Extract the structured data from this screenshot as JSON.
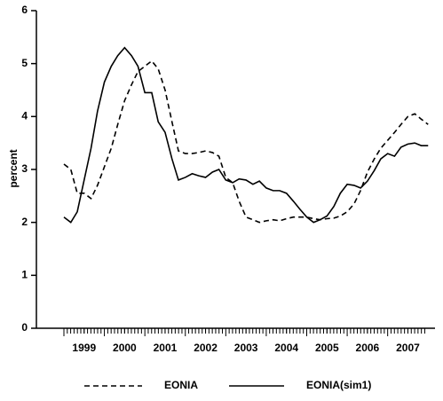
{
  "chart_data": {
    "type": "line",
    "y_label": "percent",
    "x": [
      1999.0,
      1999.17,
      1999.33,
      1999.5,
      1999.67,
      1999.83,
      2000.0,
      2000.17,
      2000.33,
      2000.5,
      2000.67,
      2000.83,
      2001.0,
      2001.17,
      2001.33,
      2001.5,
      2001.67,
      2001.83,
      2002.0,
      2002.17,
      2002.33,
      2002.5,
      2002.67,
      2002.83,
      2003.0,
      2003.17,
      2003.33,
      2003.5,
      2003.67,
      2003.83,
      2004.0,
      2004.17,
      2004.33,
      2004.5,
      2004.67,
      2004.83,
      2005.0,
      2005.17,
      2005.33,
      2005.5,
      2005.67,
      2005.83,
      2006.0,
      2006.17,
      2006.33,
      2006.5,
      2006.67,
      2006.83,
      2007.0,
      2007.17,
      2007.33,
      2007.5,
      2007.67,
      2007.83,
      2008.0
    ],
    "series": [
      {
        "name": "EONIA",
        "color": "#000000",
        "dash": "dashed",
        "values": [
          3.1,
          3.0,
          2.55,
          2.55,
          2.45,
          2.7,
          3.05,
          3.4,
          3.85,
          4.3,
          4.6,
          4.85,
          4.95,
          5.05,
          4.9,
          4.5,
          3.9,
          3.35,
          3.3,
          3.3,
          3.32,
          3.35,
          3.32,
          3.25,
          2.85,
          2.75,
          2.4,
          2.1,
          2.05,
          2.0,
          2.03,
          2.05,
          2.03,
          2.07,
          2.1,
          2.1,
          2.1,
          2.07,
          2.05,
          2.07,
          2.08,
          2.12,
          2.2,
          2.35,
          2.6,
          2.95,
          3.2,
          3.4,
          3.55,
          3.7,
          3.85,
          4.0,
          4.05,
          3.95,
          3.85
        ]
      },
      {
        "name": "EONIA(sim1)",
        "color": "#000000",
        "dash": "solid",
        "values": [
          2.1,
          2.0,
          2.2,
          2.8,
          3.4,
          4.1,
          4.65,
          4.95,
          5.15,
          5.3,
          5.15,
          4.95,
          4.45,
          4.45,
          3.9,
          3.7,
          3.2,
          2.8,
          2.85,
          2.92,
          2.88,
          2.85,
          2.95,
          3.0,
          2.8,
          2.75,
          2.82,
          2.8,
          2.72,
          2.78,
          2.65,
          2.6,
          2.6,
          2.55,
          2.4,
          2.25,
          2.1,
          2.0,
          2.05,
          2.12,
          2.3,
          2.55,
          2.72,
          2.7,
          2.65,
          2.78,
          2.98,
          3.2,
          3.3,
          3.25,
          3.42,
          3.48,
          3.5,
          3.45,
          3.45
        ]
      }
    ],
    "xlim": [
      1998.32,
      2008.17
    ],
    "xticks": [
      {
        "value": 1999.5,
        "label": "1999"
      },
      {
        "value": 2000.5,
        "label": "2000"
      },
      {
        "value": 2001.5,
        "label": "2001"
      },
      {
        "value": 2002.5,
        "label": "2002"
      },
      {
        "value": 2003.5,
        "label": "2003"
      },
      {
        "value": 2004.5,
        "label": "2004"
      },
      {
        "value": 2005.5,
        "label": "2005"
      },
      {
        "value": 2006.5,
        "label": "2006"
      },
      {
        "value": 2007.5,
        "label": "2007"
      }
    ],
    "ylim": [
      0,
      6
    ],
    "yticks": [
      0,
      1,
      2,
      3,
      4,
      5,
      6
    ],
    "grid": false,
    "legend": "bottom"
  }
}
